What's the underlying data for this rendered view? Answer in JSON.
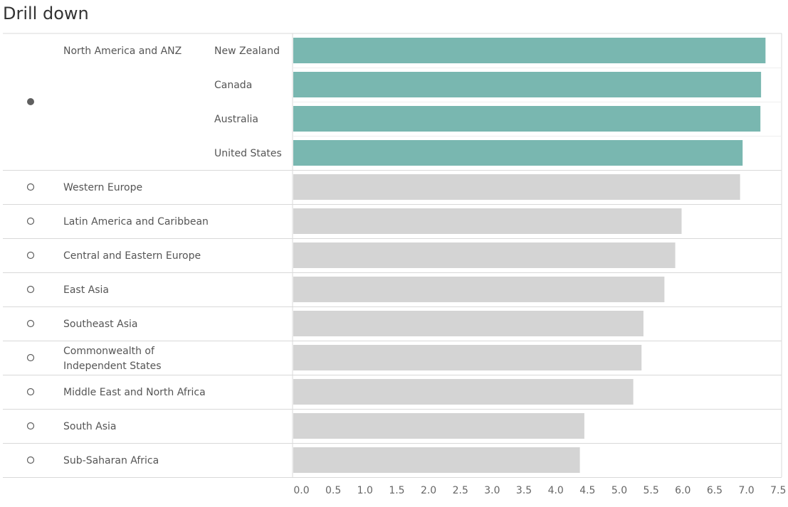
{
  "page": {
    "title": "Drill down"
  },
  "colors": {
    "highlight": "#79b7b0",
    "muted": "#d4d4d4",
    "grid": "#d9d9d9",
    "radio": "#5f5f5f"
  },
  "chart_data": {
    "type": "bar",
    "orientation": "horizontal",
    "title": "Drill down",
    "xlim": [
      0,
      7.6
    ],
    "x_ticks": [
      "0.0",
      "0.5",
      "1.0",
      "1.5",
      "2.0",
      "2.5",
      "3.0",
      "3.5",
      "4.0",
      "4.5",
      "5.0",
      "5.5",
      "6.0",
      "6.5",
      "7.0",
      "7.5"
    ],
    "rows": [
      {
        "region": "North America and ANZ",
        "selected": true,
        "countries": [
          {
            "name": "New Zealand",
            "value": 7.3
          },
          {
            "name": "Canada",
            "value": 7.23
          },
          {
            "name": "Australia",
            "value": 7.22
          },
          {
            "name": "United States",
            "value": 6.94
          }
        ]
      },
      {
        "region": "Western Europe",
        "selected": false,
        "value": 6.9
      },
      {
        "region": "Latin America and Caribbean",
        "selected": false,
        "value": 5.98
      },
      {
        "region": "Central and Eastern Europe",
        "selected": false,
        "value": 5.88
      },
      {
        "region": "East Asia",
        "selected": false,
        "value": 5.71
      },
      {
        "region": "Southeast Asia",
        "selected": false,
        "value": 5.38
      },
      {
        "region": "Commonwealth of Independent States",
        "region_lines": [
          "Commonwealth of",
          "Independent States"
        ],
        "selected": false,
        "value": 5.35
      },
      {
        "region": "Middle East and North Africa",
        "selected": false,
        "value": 5.22
      },
      {
        "region": "South Asia",
        "selected": false,
        "value": 4.45
      },
      {
        "region": "Sub-Saharan Africa",
        "selected": false,
        "value": 4.38
      }
    ]
  }
}
